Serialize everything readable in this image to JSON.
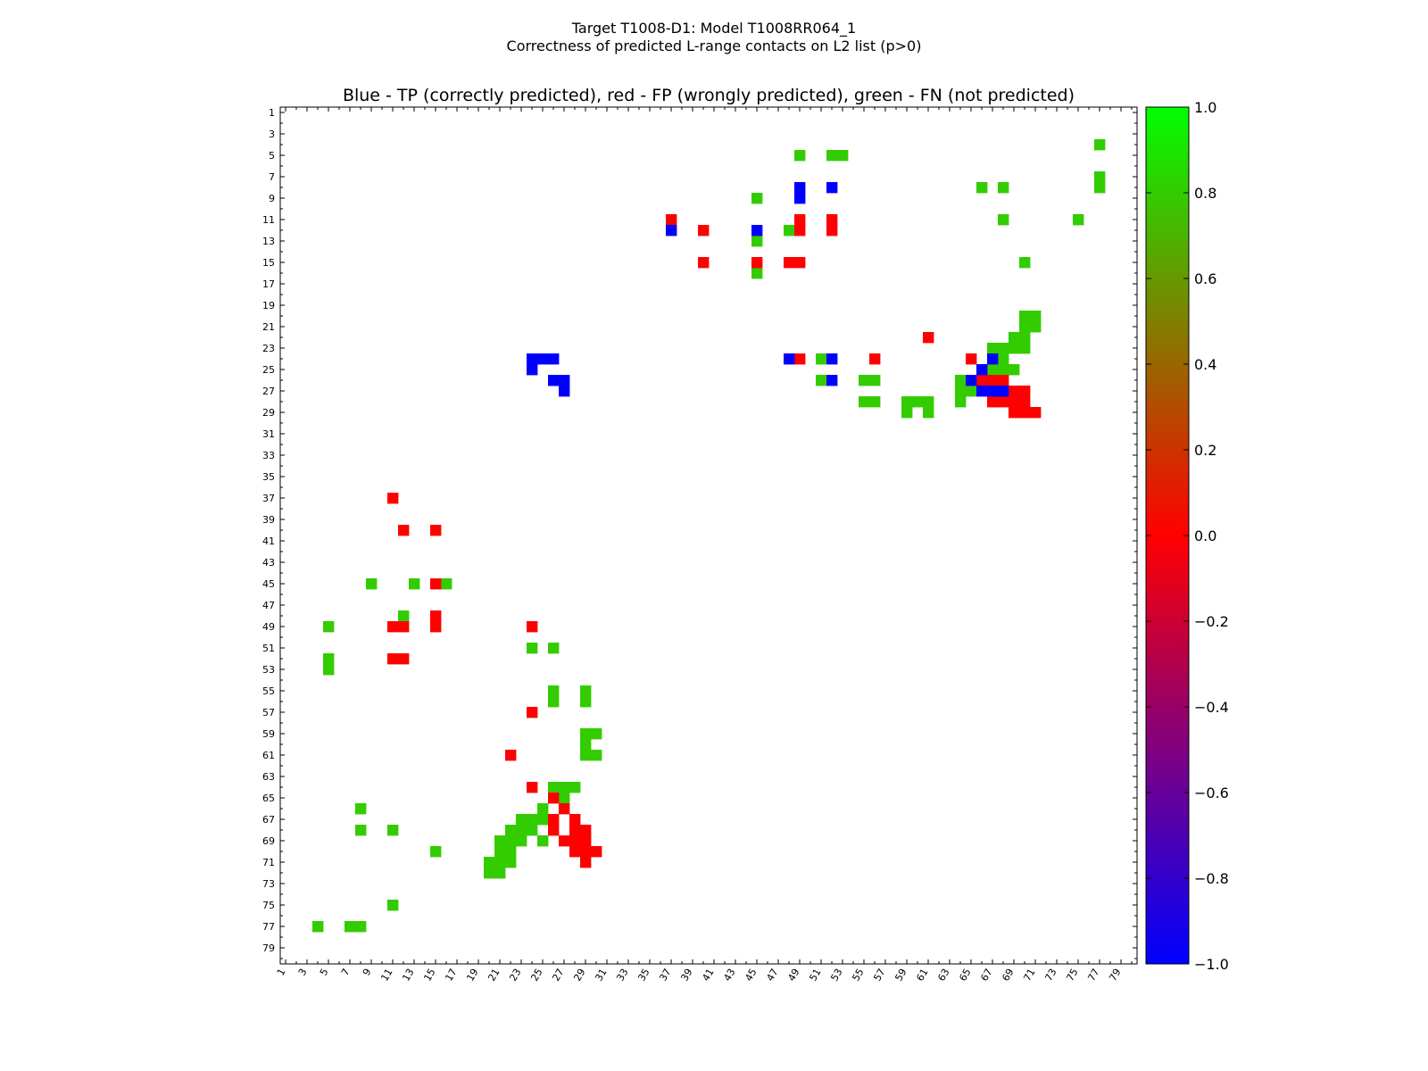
{
  "figure": {
    "suptitle_line1": "Target T1008-D1: Model T1008RR064_1",
    "suptitle_line2": "Correctness of predicted L-range contacts on L2 list (p>0)"
  },
  "chart_data": {
    "type": "heatmap",
    "title": "Blue - TP (correctly predicted), red - FP (wrongly predicted), green - FN (not predicted)",
    "xlabel": "",
    "ylabel": "",
    "n_residues": 80,
    "x_ticks": [
      "1",
      "3",
      "5",
      "7",
      "9",
      "11",
      "13",
      "15",
      "17",
      "19",
      "21",
      "23",
      "25",
      "27",
      "29",
      "31",
      "33",
      "35",
      "37",
      "39",
      "41",
      "43",
      "45",
      "47",
      "49",
      "51",
      "53",
      "55",
      "57",
      "59",
      "61",
      "63",
      "65",
      "67",
      "69",
      "71",
      "73",
      "75",
      "77",
      "79"
    ],
    "y_ticks": [
      "1",
      "3",
      "5",
      "7",
      "9",
      "11",
      "13",
      "15",
      "17",
      "19",
      "21",
      "23",
      "25",
      "27",
      "29",
      "31",
      "33",
      "35",
      "37",
      "39",
      "41",
      "43",
      "45",
      "47",
      "49",
      "51",
      "53",
      "55",
      "57",
      "59",
      "61",
      "63",
      "65",
      "67",
      "69",
      "71",
      "73",
      "75",
      "77",
      "79"
    ],
    "colorbar": {
      "range": [
        -1.0,
        1.0
      ],
      "ticks": [
        "1.0",
        "0.8",
        "0.6",
        "0.4",
        "0.2",
        "0.0",
        "−0.2",
        "−0.4",
        "−0.6",
        "−0.8",
        "−1.0"
      ],
      "colors": [
        "#0000ff",
        "#ff0000",
        "#00ff00"
      ]
    },
    "legend": {
      "TP": {
        "label": "TP (correctly predicted)",
        "value": -1.0,
        "color": "#0000ff"
      },
      "FP": {
        "label": "FP (wrongly predicted)",
        "value": 0.0,
        "color": "#ff0000"
      },
      "FN": {
        "label": "FN (not predicted)",
        "value": 0.8,
        "color": "#33cc00"
      }
    },
    "cells_note": "row = y residue, col = x residue (1-based)",
    "TP": [
      [
        8,
        49
      ],
      [
        9,
        49
      ],
      [
        12,
        45
      ],
      [
        12,
        37
      ],
      [
        8,
        52
      ],
      [
        24,
        48
      ],
      [
        24,
        52
      ],
      [
        25,
        66
      ],
      [
        26,
        52
      ],
      [
        26,
        65
      ],
      [
        24,
        67
      ],
      [
        27,
        66
      ],
      [
        27,
        67
      ],
      [
        27,
        68
      ],
      [
        24,
        24
      ],
      [
        25,
        24
      ],
      [
        24,
        25
      ],
      [
        24,
        26
      ],
      [
        26,
        26
      ],
      [
        26,
        27
      ],
      [
        27,
        27
      ],
      [
        26,
        26
      ]
    ],
    "FP": [
      [
        11,
        37
      ],
      [
        12,
        40
      ],
      [
        11,
        49
      ],
      [
        12,
        49
      ],
      [
        11,
        52
      ],
      [
        12,
        52
      ],
      [
        15,
        40
      ],
      [
        15,
        45
      ],
      [
        15,
        48
      ],
      [
        15,
        49
      ],
      [
        22,
        61
      ],
      [
        24,
        49
      ],
      [
        24,
        56
      ],
      [
        24,
        65
      ],
      [
        26,
        66
      ],
      [
        26,
        67
      ],
      [
        26,
        68
      ],
      [
        27,
        69
      ],
      [
        27,
        70
      ],
      [
        28,
        67
      ],
      [
        28,
        68
      ],
      [
        28,
        69
      ],
      [
        28,
        70
      ],
      [
        29,
        69
      ],
      [
        29,
        70
      ],
      [
        29,
        71
      ],
      [
        37,
        11
      ],
      [
        40,
        12
      ],
      [
        40,
        15
      ],
      [
        45,
        15
      ],
      [
        48,
        15
      ],
      [
        49,
        15
      ],
      [
        49,
        11
      ],
      [
        49,
        12
      ],
      [
        52,
        11
      ],
      [
        52,
        12
      ],
      [
        49,
        24
      ],
      [
        57,
        24
      ],
      [
        61,
        22
      ],
      [
        64,
        24
      ],
      [
        65,
        26
      ],
      [
        66,
        27
      ],
      [
        67,
        26
      ],
      [
        67,
        28
      ],
      [
        68,
        26
      ],
      [
        68,
        28
      ],
      [
        68,
        29
      ],
      [
        69,
        27
      ],
      [
        69,
        28
      ],
      [
        69,
        29
      ],
      [
        70,
        28
      ],
      [
        70,
        29
      ],
      [
        70,
        30
      ],
      [
        71,
        29
      ]
    ],
    "FN": [
      [
        5,
        49
      ],
      [
        5,
        52
      ],
      [
        5,
        53
      ],
      [
        4,
        77
      ],
      [
        7,
        77
      ],
      [
        8,
        77
      ],
      [
        8,
        66
      ],
      [
        8,
        68
      ],
      [
        9,
        45
      ],
      [
        11,
        68
      ],
      [
        11,
        75
      ],
      [
        12,
        48
      ],
      [
        13,
        45
      ],
      [
        15,
        70
      ],
      [
        16,
        45
      ],
      [
        20,
        70
      ],
      [
        20,
        71
      ],
      [
        21,
        70
      ],
      [
        21,
        71
      ],
      [
        22,
        69
      ],
      [
        22,
        70
      ],
      [
        23,
        67
      ],
      [
        23,
        68
      ],
      [
        23,
        69
      ],
      [
        23,
        70
      ],
      [
        24,
        67
      ],
      [
        24,
        68
      ],
      [
        24,
        51
      ],
      [
        25,
        66
      ],
      [
        25,
        67
      ],
      [
        25,
        68
      ],
      [
        25,
        69
      ],
      [
        26,
        51
      ],
      [
        26,
        55
      ],
      [
        26,
        56
      ],
      [
        26,
        64
      ],
      [
        27,
        64
      ],
      [
        27,
        65
      ],
      [
        28,
        55
      ],
      [
        28,
        56
      ],
      [
        28,
        59
      ],
      [
        28,
        60
      ],
      [
        28,
        61
      ],
      [
        28,
        64
      ],
      [
        29,
        59
      ],
      [
        29,
        61
      ],
      [
        45,
        9
      ],
      [
        45,
        13
      ],
      [
        45,
        16
      ],
      [
        48,
        12
      ],
      [
        49,
        5
      ],
      [
        51,
        24
      ],
      [
        51,
        26
      ],
      [
        52,
        5
      ],
      [
        53,
        5
      ],
      [
        55,
        26
      ],
      [
        55,
        29
      ],
      [
        56,
        26
      ],
      [
        56,
        29
      ],
      [
        59,
        29
      ],
      [
        59,
        30
      ],
      [
        60,
        29
      ],
      [
        61,
        29
      ],
      [
        61,
        30
      ],
      [
        64,
        26
      ],
      [
        64,
        27
      ],
      [
        64,
        28
      ],
      [
        65,
        27
      ],
      [
        66,
        25
      ],
      [
        66,
        8
      ],
      [
        67,
        23
      ],
      [
        67,
        24
      ],
      [
        67,
        25
      ],
      [
        68,
        22
      ],
      [
        68,
        23
      ],
      [
        68,
        24
      ],
      [
        68,
        8
      ],
      [
        68,
        11
      ],
      [
        69,
        21
      ],
      [
        69,
        22
      ],
      [
        69,
        23
      ],
      [
        69,
        25
      ],
      [
        70,
        21
      ],
      [
        70,
        22
      ],
      [
        70,
        15
      ],
      [
        71,
        20
      ],
      [
        71,
        21
      ],
      [
        71,
        22
      ],
      [
        72,
        20
      ],
      [
        72,
        21
      ],
      [
        75,
        11
      ],
      [
        77,
        4
      ],
      [
        77,
        7
      ],
      [
        77,
        8
      ]
    ]
  }
}
